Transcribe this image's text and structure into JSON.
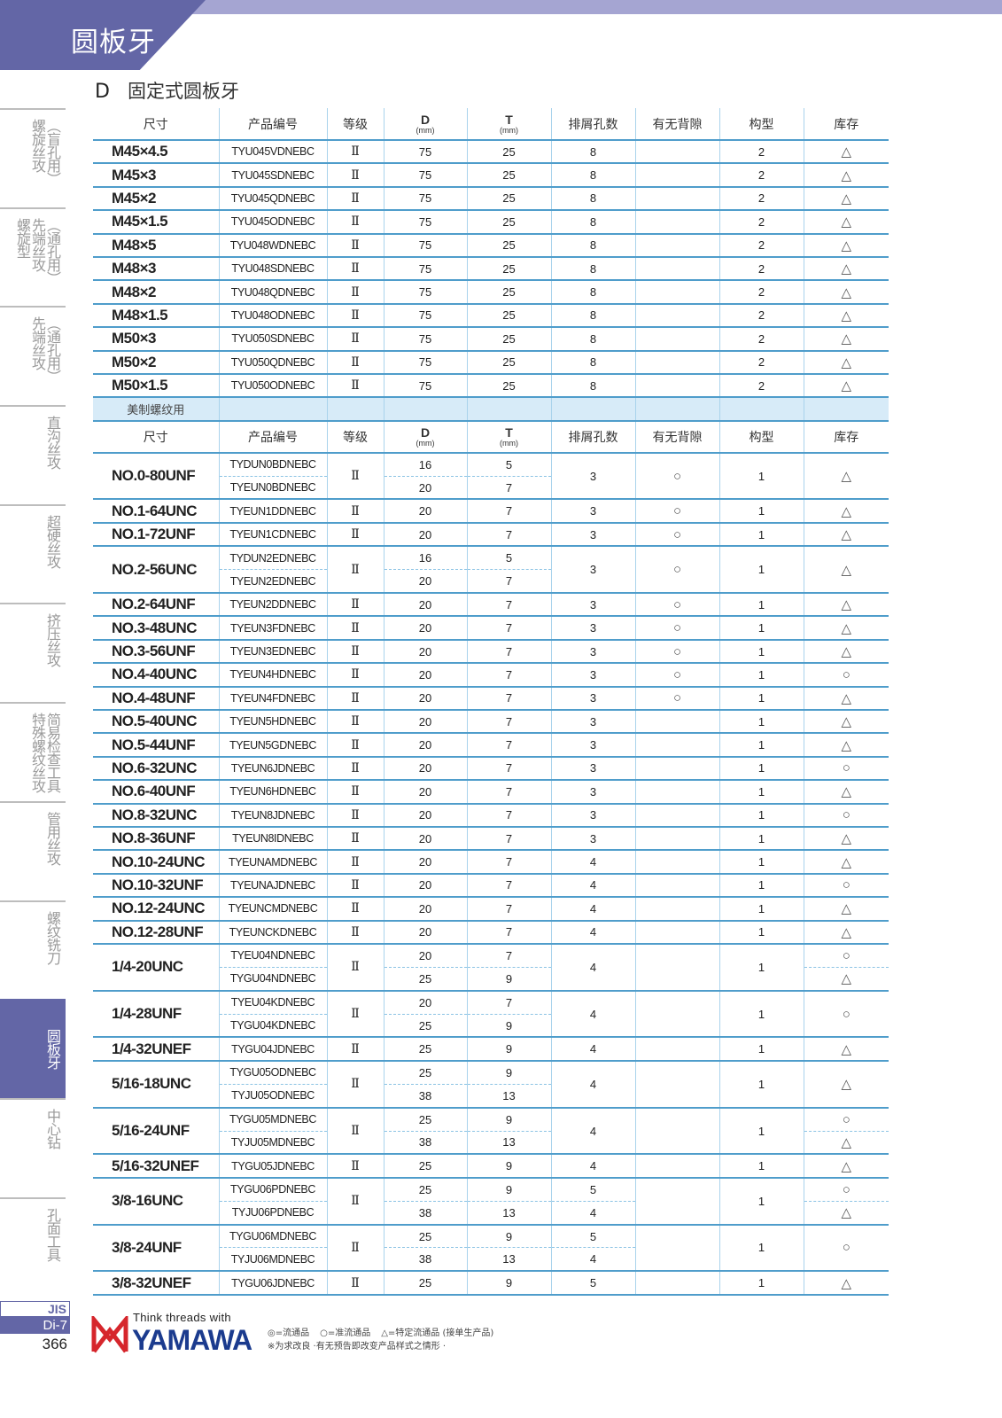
{
  "header": {
    "category_title": "圆板牙",
    "section_letter": "D",
    "section_title": "固定式圆板牙"
  },
  "colors": {
    "brand_purple": "#6366a6",
    "strip": "#a5a5d2",
    "rule_blue": "#4f9dcb",
    "band": "#d7ebf8",
    "logo_red": "#d6262c",
    "logo_blue": "#1b3b8e"
  },
  "sidebar": {
    "items": [
      {
        "cols": [
          "螺旋丝攻",
          "︵盲孔用︶"
        ],
        "active": false
      },
      {
        "cols": [
          "螺旋型",
          "先端丝攻",
          "︵通孔用︶"
        ],
        "active": false
      },
      {
        "cols": [
          "先端丝攻",
          "︵通孔用︶"
        ],
        "active": false
      },
      {
        "cols": [
          "直沟丝攻"
        ],
        "active": false
      },
      {
        "cols": [
          "超硬丝攻"
        ],
        "active": false
      },
      {
        "cols": [
          "挤压丝攻"
        ],
        "active": false
      },
      {
        "cols": [
          "特殊螺纹丝攻",
          "简易检查工具"
        ],
        "active": false
      },
      {
        "cols": [
          "管用丝攻"
        ],
        "active": false
      },
      {
        "cols": [
          "螺纹铣刀"
        ],
        "active": false
      },
      {
        "cols": [
          "圆板牙"
        ],
        "active": true
      },
      {
        "cols": [
          "中心钻"
        ],
        "active": false
      },
      {
        "cols": [
          "孔面工具"
        ],
        "active": false
      }
    ]
  },
  "table": {
    "columns": [
      {
        "label": "尺寸"
      },
      {
        "label": "产品编号"
      },
      {
        "label": "等级"
      },
      {
        "label": "D",
        "unit": "(mm)"
      },
      {
        "label": "T",
        "unit": "(mm)"
      },
      {
        "label": "排屑孔数"
      },
      {
        "label": "有无背隙"
      },
      {
        "label": "构型"
      },
      {
        "label": "库存"
      }
    ],
    "metric_rows": [
      {
        "size": "M45×4.5",
        "grade": "Ⅱ",
        "subs": [
          {
            "code": "TYU045VDNEBC",
            "d": "75",
            "t": "25"
          }
        ],
        "holes": "8",
        "back": "",
        "type": "2",
        "stock": "△"
      },
      {
        "size": "M45×3",
        "grade": "Ⅱ",
        "subs": [
          {
            "code": "TYU045SDNEBC",
            "d": "75",
            "t": "25"
          }
        ],
        "holes": "8",
        "back": "",
        "type": "2",
        "stock": "△"
      },
      {
        "size": "M45×2",
        "grade": "Ⅱ",
        "subs": [
          {
            "code": "TYU045QDNEBC",
            "d": "75",
            "t": "25"
          }
        ],
        "holes": "8",
        "back": "",
        "type": "2",
        "stock": "△"
      },
      {
        "size": "M45×1.5",
        "grade": "Ⅱ",
        "subs": [
          {
            "code": "TYU045ODNEBC",
            "d": "75",
            "t": "25"
          }
        ],
        "holes": "8",
        "back": "",
        "type": "2",
        "stock": "△"
      },
      {
        "size": "M48×5",
        "grade": "Ⅱ",
        "subs": [
          {
            "code": "TYU048WDNEBC",
            "d": "75",
            "t": "25"
          }
        ],
        "holes": "8",
        "back": "",
        "type": "2",
        "stock": "△"
      },
      {
        "size": "M48×3",
        "grade": "Ⅱ",
        "subs": [
          {
            "code": "TYU048SDNEBC",
            "d": "75",
            "t": "25"
          }
        ],
        "holes": "8",
        "back": "",
        "type": "2",
        "stock": "△"
      },
      {
        "size": "M48×2",
        "grade": "Ⅱ",
        "subs": [
          {
            "code": "TYU048QDNEBC",
            "d": "75",
            "t": "25"
          }
        ],
        "holes": "8",
        "back": "",
        "type": "2",
        "stock": "△"
      },
      {
        "size": "M48×1.5",
        "grade": "Ⅱ",
        "subs": [
          {
            "code": "TYU048ODNEBC",
            "d": "75",
            "t": "25"
          }
        ],
        "holes": "8",
        "back": "",
        "type": "2",
        "stock": "△"
      },
      {
        "size": "M50×3",
        "grade": "Ⅱ",
        "subs": [
          {
            "code": "TYU050SDNEBC",
            "d": "75",
            "t": "25"
          }
        ],
        "holes": "8",
        "back": "",
        "type": "2",
        "stock": "△"
      },
      {
        "size": "M50×2",
        "grade": "Ⅱ",
        "subs": [
          {
            "code": "TYU050QDNEBC",
            "d": "75",
            "t": "25"
          }
        ],
        "holes": "8",
        "back": "",
        "type": "2",
        "stock": "△"
      },
      {
        "size": "M50×1.5",
        "grade": "Ⅱ",
        "subs": [
          {
            "code": "TYU050ODNEBC",
            "d": "75",
            "t": "25"
          }
        ],
        "holes": "8",
        "back": "",
        "type": "2",
        "stock": "△"
      }
    ],
    "band_label": "美制螺纹用",
    "unified_rows": [
      {
        "size": "NO.0-80UNF",
        "grade": "Ⅱ",
        "subs": [
          {
            "code": "TYDUN0BDNEBC",
            "d": "16",
            "t": "5"
          },
          {
            "code": "TYEUN0BDNEBC",
            "d": "20",
            "t": "7"
          }
        ],
        "holes": "3",
        "back": "○",
        "type": "1",
        "stock": "△"
      },
      {
        "size": "NO.1-64UNC",
        "grade": "Ⅱ",
        "subs": [
          {
            "code": "TYEUN1DDNEBC",
            "d": "20",
            "t": "7"
          }
        ],
        "holes": "3",
        "back": "○",
        "type": "1",
        "stock": "△"
      },
      {
        "size": "NO.1-72UNF",
        "grade": "Ⅱ",
        "subs": [
          {
            "code": "TYEUN1CDNEBC",
            "d": "20",
            "t": "7"
          }
        ],
        "holes": "3",
        "back": "○",
        "type": "1",
        "stock": "△"
      },
      {
        "size": "NO.2-56UNC",
        "grade": "Ⅱ",
        "subs": [
          {
            "code": "TYDUN2EDNEBC",
            "d": "16",
            "t": "5"
          },
          {
            "code": "TYEUN2EDNEBC",
            "d": "20",
            "t": "7"
          }
        ],
        "holes": "3",
        "back": "○",
        "type": "1",
        "stock": "△"
      },
      {
        "size": "NO.2-64UNF",
        "grade": "Ⅱ",
        "subs": [
          {
            "code": "TYEUN2DDNEBC",
            "d": "20",
            "t": "7"
          }
        ],
        "holes": "3",
        "back": "○",
        "type": "1",
        "stock": "△"
      },
      {
        "size": "NO.3-48UNC",
        "grade": "Ⅱ",
        "subs": [
          {
            "code": "TYEUN3FDNEBC",
            "d": "20",
            "t": "7"
          }
        ],
        "holes": "3",
        "back": "○",
        "type": "1",
        "stock": "△"
      },
      {
        "size": "NO.3-56UNF",
        "grade": "Ⅱ",
        "subs": [
          {
            "code": "TYEUN3EDNEBC",
            "d": "20",
            "t": "7"
          }
        ],
        "holes": "3",
        "back": "○",
        "type": "1",
        "stock": "△"
      },
      {
        "size": "NO.4-40UNC",
        "grade": "Ⅱ",
        "subs": [
          {
            "code": "TYEUN4HDNEBC",
            "d": "20",
            "t": "7"
          }
        ],
        "holes": "3",
        "back": "○",
        "type": "1",
        "stock": "○"
      },
      {
        "size": "NO.4-48UNF",
        "grade": "Ⅱ",
        "subs": [
          {
            "code": "TYEUN4FDNEBC",
            "d": "20",
            "t": "7"
          }
        ],
        "holes": "3",
        "back": "○",
        "type": "1",
        "stock": "△"
      },
      {
        "size": "NO.5-40UNC",
        "grade": "Ⅱ",
        "subs": [
          {
            "code": "TYEUN5HDNEBC",
            "d": "20",
            "t": "7"
          }
        ],
        "holes": "3",
        "back": "",
        "type": "1",
        "stock": "△"
      },
      {
        "size": "NO.5-44UNF",
        "grade": "Ⅱ",
        "subs": [
          {
            "code": "TYEUN5GDNEBC",
            "d": "20",
            "t": "7"
          }
        ],
        "holes": "3",
        "back": "",
        "type": "1",
        "stock": "△"
      },
      {
        "size": "NO.6-32UNC",
        "grade": "Ⅱ",
        "subs": [
          {
            "code": "TYEUN6JDNEBC",
            "d": "20",
            "t": "7"
          }
        ],
        "holes": "3",
        "back": "",
        "type": "1",
        "stock": "○"
      },
      {
        "size": "NO.6-40UNF",
        "grade": "Ⅱ",
        "subs": [
          {
            "code": "TYEUN6HDNEBC",
            "d": "20",
            "t": "7"
          }
        ],
        "holes": "3",
        "back": "",
        "type": "1",
        "stock": "△"
      },
      {
        "size": "NO.8-32UNC",
        "grade": "Ⅱ",
        "subs": [
          {
            "code": "TYEUN8JDNEBC",
            "d": "20",
            "t": "7"
          }
        ],
        "holes": "3",
        "back": "",
        "type": "1",
        "stock": "○"
      },
      {
        "size": "NO.8-36UNF",
        "grade": "Ⅱ",
        "subs": [
          {
            "code": "TYEUN8IDNEBC",
            "d": "20",
            "t": "7"
          }
        ],
        "holes": "3",
        "back": "",
        "type": "1",
        "stock": "△"
      },
      {
        "size": "NO.10-24UNC",
        "grade": "Ⅱ",
        "subs": [
          {
            "code": "TYEUNAMDNEBC",
            "d": "20",
            "t": "7"
          }
        ],
        "holes": "4",
        "back": "",
        "type": "1",
        "stock": "△"
      },
      {
        "size": "NO.10-32UNF",
        "grade": "Ⅱ",
        "subs": [
          {
            "code": "TYEUNAJDNEBC",
            "d": "20",
            "t": "7"
          }
        ],
        "holes": "4",
        "back": "",
        "type": "1",
        "stock": "○"
      },
      {
        "size": "NO.12-24UNC",
        "grade": "Ⅱ",
        "subs": [
          {
            "code": "TYEUNCMDNEBC",
            "d": "20",
            "t": "7"
          }
        ],
        "holes": "4",
        "back": "",
        "type": "1",
        "stock": "△"
      },
      {
        "size": "NO.12-28UNF",
        "grade": "Ⅱ",
        "subs": [
          {
            "code": "TYEUNCKDNEBC",
            "d": "20",
            "t": "7"
          }
        ],
        "holes": "4",
        "back": "",
        "type": "1",
        "stock": "△"
      },
      {
        "size": "1/4-20UNC",
        "grade": "Ⅱ",
        "subs": [
          {
            "code": "TYEU04NDNEBC",
            "d": "20",
            "t": "7"
          },
          {
            "code": "TYGU04NDNEBC",
            "d": "25",
            "t": "9"
          }
        ],
        "holes": "4",
        "back": "",
        "type": "1",
        "stock": [
          "○",
          "△"
        ]
      },
      {
        "size": "1/4-28UNF",
        "grade": "Ⅱ",
        "subs": [
          {
            "code": "TYEU04KDNEBC",
            "d": "20",
            "t": "7"
          },
          {
            "code": "TYGU04KDNEBC",
            "d": "25",
            "t": "9"
          }
        ],
        "holes": "4",
        "back": "",
        "type": "1",
        "stock": "○"
      },
      {
        "size": "1/4-32UNEF",
        "grade": "Ⅱ",
        "subs": [
          {
            "code": "TYGU04JDNEBC",
            "d": "25",
            "t": "9"
          }
        ],
        "holes": "4",
        "back": "",
        "type": "1",
        "stock": "△"
      },
      {
        "size": "5/16-18UNC",
        "grade": "Ⅱ",
        "subs": [
          {
            "code": "TYGU05ODNEBC",
            "d": "25",
            "t": "9"
          },
          {
            "code": "TYJU05ODNEBC",
            "d": "38",
            "t": "13"
          }
        ],
        "holes": "4",
        "back": "",
        "type": "1",
        "stock": "△"
      },
      {
        "size": "5/16-24UNF",
        "grade": "Ⅱ",
        "subs": [
          {
            "code": "TYGU05MDNEBC",
            "d": "25",
            "t": "9"
          },
          {
            "code": "TYJU05MDNEBC",
            "d": "38",
            "t": "13"
          }
        ],
        "holes": "4",
        "back": "",
        "type": "1",
        "stock": [
          "○",
          "△"
        ]
      },
      {
        "size": "5/16-32UNEF",
        "grade": "Ⅱ",
        "subs": [
          {
            "code": "TYGU05JDNEBC",
            "d": "25",
            "t": "9"
          }
        ],
        "holes": "4",
        "back": "",
        "type": "1",
        "stock": "△"
      },
      {
        "size": "3/8-16UNC",
        "grade": "Ⅱ",
        "subs": [
          {
            "code": "TYGU06PDNEBC",
            "d": "25",
            "t": "9"
          },
          {
            "code": "TYJU06PDNEBC",
            "d": "38",
            "t": "13"
          }
        ],
        "holes": [
          "5",
          "4"
        ],
        "back": "",
        "type": "1",
        "stock": [
          "○",
          "△"
        ]
      },
      {
        "size": "3/8-24UNF",
        "grade": "Ⅱ",
        "subs": [
          {
            "code": "TYGU06MDNEBC",
            "d": "25",
            "t": "9"
          },
          {
            "code": "TYJU06MDNEBC",
            "d": "38",
            "t": "13"
          }
        ],
        "holes": [
          "5",
          "4"
        ],
        "back": "",
        "type": "1",
        "stock": "○"
      },
      {
        "size": "3/8-32UNEF",
        "grade": "Ⅱ",
        "subs": [
          {
            "code": "TYGU06JDNEBC",
            "d": "25",
            "t": "9"
          }
        ],
        "holes": "5",
        "back": "",
        "type": "1",
        "stock": "△"
      }
    ]
  },
  "footer": {
    "standard": "JIS",
    "page_code": "Di-7",
    "page_number": "366",
    "logo_tagline": "Think threads with",
    "logo_brand": "YAMAWA",
    "legend": [
      "◎=流通品",
      "○=准流通品",
      "△=特定流通品 (接单生产品)"
    ],
    "note": "※为求改良 ·有无预告即改变产品样式之情形 ·"
  }
}
